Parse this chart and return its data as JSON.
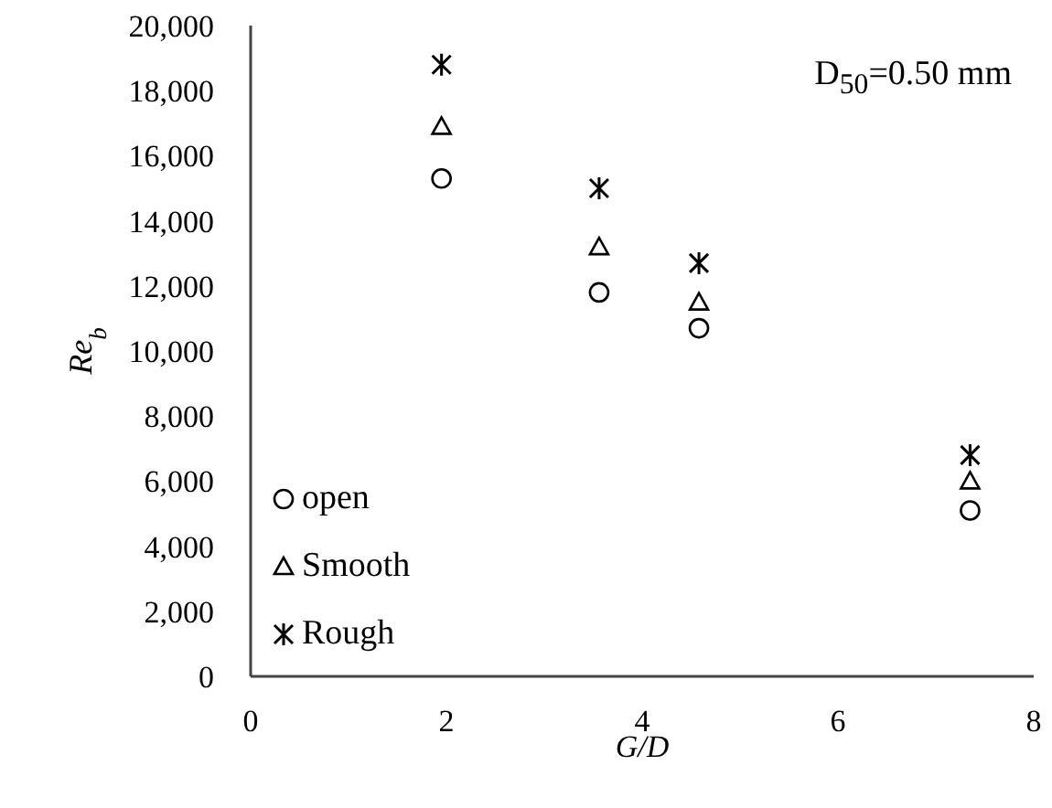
{
  "chart_data": {
    "type": "scatter",
    "xlabel": "G/D",
    "ylabel": "Re$_{b}$",
    "annotations": [
      "D$_{50}$=0.50 mm"
    ],
    "x": [
      1.95,
      3.56,
      4.58,
      7.35
    ],
    "series": [
      {
        "name": "open",
        "color": "#000000",
        "marker": "circle",
        "values": [
          15300,
          11800,
          10700,
          5100
        ]
      },
      {
        "name": "Smooth",
        "color": "#000000",
        "marker": "triangle",
        "values": [
          16900,
          13200,
          11500,
          6000
        ]
      },
      {
        "name": "Rough",
        "color": "#000000",
        "marker": "cross",
        "values": [
          18800,
          15000,
          12700,
          6800
        ]
      }
    ],
    "xlim": [
      0,
      8
    ],
    "xticks": [
      0,
      2,
      4,
      6,
      8
    ],
    "ylim": [
      0,
      20000
    ],
    "yticks": [
      0,
      {
        "value": 2000,
        "label": "2,000"
      },
      {
        "value": 4000,
        "label": "4,000"
      },
      {
        "value": 6000,
        "label": "6,000"
      },
      {
        "value": 8000,
        "label": "8,000"
      },
      {
        "value": 10000,
        "label": "10,000"
      },
      {
        "value": 12000,
        "label": "12,000"
      },
      {
        "value": 14000,
        "label": "14,000"
      },
      {
        "value": 16000,
        "label": "16,000"
      },
      {
        "value": 18000,
        "label": "18,000"
      },
      {
        "value": 20000,
        "label": "20,000"
      }
    ],
    "grid": false,
    "legend": "bottom left"
  }
}
